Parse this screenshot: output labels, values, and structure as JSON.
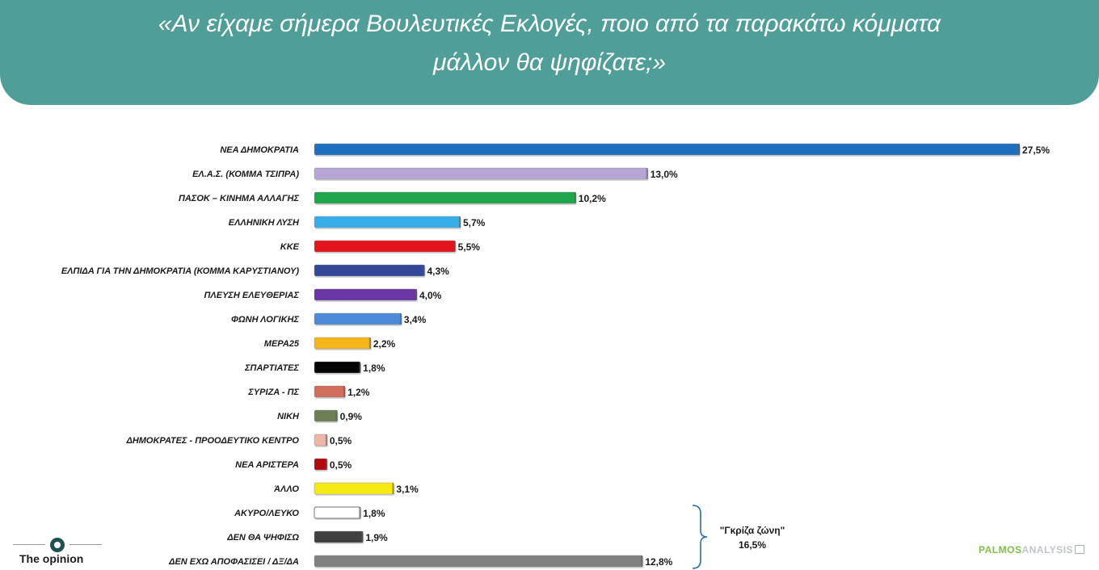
{
  "header": {
    "title_line1": "«Αν είχαμε σήμερα Βουλευτικές Εκλογές, ποιο από τα παρακάτω κόμματα",
    "title_line2": "μάλλον θα ψηφίζατε;»"
  },
  "chart_data": {
    "type": "bar",
    "orientation": "horizontal",
    "categories": [
      "ΝΕΑ ΔΗΜΟΚΡΑΤΙΑ",
      "ΕΛ.Α.Σ. (ΚΟΜΜΑ ΤΣΙΠΡΑ)",
      "ΠΑΣΟΚ – ΚΙΝΗΜΑ ΑΛΛΑΓΗΣ",
      "ΕΛΛΗΝΙΚΗ ΛΥΣΗ",
      "ΚΚΕ",
      "ΕΛΠΙΔΑ ΓΙΑ ΤΗΝ ΔΗΜΟΚΡΑΤΙΑ (ΚΟΜΜΑ ΚΑΡΥΣΤΙΑΝΟΥ)",
      "ΠΛΕΥΣΗ ΕΛΕΥΘΕΡΙΑΣ",
      "ΦΩΝΗ ΛΟΓΙΚΗΣ",
      "ΜΕΡΑ25",
      "ΣΠΑΡΤΙΑΤΕΣ",
      "ΣΥΡΙΖΑ - ΠΣ",
      "ΝΙΚΗ",
      "ΔΗΜΟΚΡΑΤΕΣ - ΠΡΟΟΔΕΥΤΙΚΟ ΚΕΝΤΡΟ",
      "ΝΕΑ ΑΡΙΣΤΕΡΑ",
      "ΆΛΛΟ",
      "ΑΚΥΡΟ/ΛΕΥΚΟ",
      "ΔΕΝ ΘΑ ΨΗΦΙΣΩ",
      "ΔΕΝ ΕΧΩ ΑΠΟΦΑΣΙΣΕΙ / ΔΞ/ΔΑ"
    ],
    "values": [
      27.5,
      13.0,
      10.2,
      5.7,
      5.5,
      4.3,
      4.0,
      3.4,
      2.2,
      1.8,
      1.2,
      0.9,
      0.5,
      0.5,
      3.1,
      1.8,
      1.9,
      12.8
    ],
    "value_labels": [
      "27,5%",
      "13,0%",
      "10,2%",
      "5,7%",
      "5,5%",
      "4,3%",
      "4,0%",
      "3,4%",
      "2,2%",
      "1,8%",
      "1,2%",
      "0,9%",
      "0,5%",
      "0,5%",
      "3,1%",
      "1,8%",
      "1,9%",
      "12,8%"
    ],
    "colors": [
      "#1f6fc0",
      "#b6a5d6",
      "#1fa64a",
      "#38aee8",
      "#e3141b",
      "#34489a",
      "#6a35a5",
      "#4d8ad8",
      "#f5b51a",
      "#050505",
      "#cf6e5b",
      "#6f7f55",
      "#efb5a6",
      "#b0090f",
      "#f5ea12",
      "#ffffff",
      "#404040",
      "#808080"
    ],
    "xlim": [
      0,
      27.5
    ],
    "annotation": {
      "text_line1": "\"Γκρίζα ζώνη\"",
      "text_line2": "16,5%"
    }
  },
  "footer": {
    "left_logo": "The opinion",
    "right_logo_part1": "PALMOS",
    "right_logo_part2": "ANALYSIS"
  }
}
